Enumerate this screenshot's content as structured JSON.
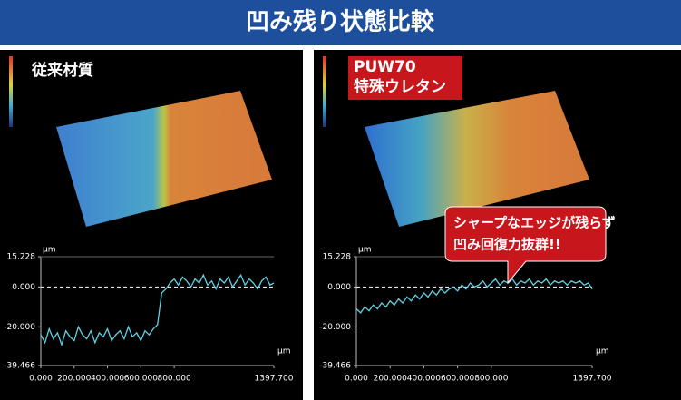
{
  "header": {
    "title": "凹み残り状態比較"
  },
  "callout": {
    "lines": [
      "シャープなエッジが残らず",
      "凹み回復力抜群!!"
    ]
  },
  "chart_data": [
    {
      "type": "line",
      "label_lines": [
        "従来材質"
      ],
      "x_label": "μm",
      "y_label": "μm",
      "xlim": [
        0,
        1397.7
      ],
      "ylim": [
        -39.466,
        15.228
      ],
      "xticks": [
        {
          "value": 0,
          "label": "0.000"
        },
        {
          "value": 200,
          "label": "200.000"
        },
        {
          "value": 400,
          "label": "400.000"
        },
        {
          "value": 600,
          "label": "600.000"
        },
        {
          "value": 800,
          "label": "800.000"
        },
        {
          "value": 1397.7,
          "label": "1397.700"
        }
      ],
      "yticks": [
        {
          "value": 15.228,
          "label": "15.228"
        },
        {
          "value": 0,
          "label": "0.000"
        },
        {
          "value": -20,
          "label": "-20.000"
        },
        {
          "value": -39.466,
          "label": "-39.466"
        }
      ],
      "reference_line": 0,
      "surface": "step",
      "x": [
        0,
        25,
        50,
        75,
        100,
        125,
        150,
        175,
        200,
        225,
        250,
        275,
        300,
        325,
        350,
        375,
        400,
        425,
        450,
        475,
        500,
        525,
        550,
        575,
        600,
        625,
        650,
        675,
        700,
        725,
        750,
        775,
        800,
        825,
        850,
        875,
        900,
        925,
        950,
        975,
        1000,
        1025,
        1050,
        1075,
        1100,
        1125,
        1150,
        1175,
        1200,
        1225,
        1250,
        1275,
        1300,
        1325,
        1350,
        1375,
        1397.7
      ],
      "series": [
        {
          "color": "#5fd3e3",
          "values": [
            -24,
            -28,
            -21,
            -26,
            -23,
            -29,
            -22,
            -25,
            -27,
            -20,
            -24,
            -26,
            -22,
            -28,
            -23,
            -25,
            -21,
            -27,
            -24,
            -22,
            -26,
            -20,
            -25,
            -23,
            -27,
            -22,
            -24,
            -21,
            -19,
            -3,
            -1,
            2,
            4,
            1,
            5,
            3,
            0,
            4,
            2,
            6,
            1,
            3,
            -1,
            4,
            2,
            5,
            0,
            3,
            6,
            1,
            4,
            2,
            -1,
            3,
            5,
            1,
            2
          ]
        }
      ]
    },
    {
      "type": "line",
      "label_lines": [
        "PUW70",
        "特殊ウレタン"
      ],
      "x_label": "μm",
      "y_label": "μm",
      "xlim": [
        0,
        1397.7
      ],
      "ylim": [
        -39.466,
        15.228
      ],
      "xticks": [
        {
          "value": 0,
          "label": "0.000"
        },
        {
          "value": 200,
          "label": "200.000"
        },
        {
          "value": 400,
          "label": "400.000"
        },
        {
          "value": 600,
          "label": "600.000"
        },
        {
          "value": 800,
          "label": "800.000"
        },
        {
          "value": 1397.7,
          "label": "1397.700"
        }
      ],
      "yticks": [
        {
          "value": 15.228,
          "label": "15.228"
        },
        {
          "value": 0,
          "label": "0.000"
        },
        {
          "value": -20,
          "label": "-20.000"
        },
        {
          "value": -39.466,
          "label": "-39.466"
        }
      ],
      "reference_line": 0,
      "surface": "smooth",
      "x": [
        0,
        25,
        50,
        75,
        100,
        125,
        150,
        175,
        200,
        225,
        250,
        275,
        300,
        325,
        350,
        375,
        400,
        425,
        450,
        475,
        500,
        525,
        550,
        575,
        600,
        625,
        650,
        675,
        700,
        725,
        750,
        775,
        800,
        825,
        850,
        875,
        900,
        925,
        950,
        975,
        1000,
        1025,
        1050,
        1075,
        1100,
        1125,
        1150,
        1175,
        1200,
        1225,
        1250,
        1275,
        1300,
        1325,
        1350,
        1375,
        1397.7
      ],
      "series": [
        {
          "color": "#5fd3e3",
          "values": [
            -11,
            -13,
            -10,
            -12,
            -9,
            -11,
            -8,
            -10,
            -7,
            -9,
            -6,
            -8,
            -5,
            -7,
            -4,
            -6,
            -3,
            -5,
            -2,
            -4,
            -1,
            -3,
            -1,
            0,
            -2,
            1,
            -1,
            2,
            0,
            1,
            3,
            0,
            2,
            4,
            1,
            3,
            2,
            4,
            1,
            3,
            2,
            4,
            1,
            3,
            2,
            4,
            1,
            3,
            2,
            3,
            1,
            3,
            2,
            3,
            1,
            2,
            -1
          ]
        }
      ]
    }
  ]
}
